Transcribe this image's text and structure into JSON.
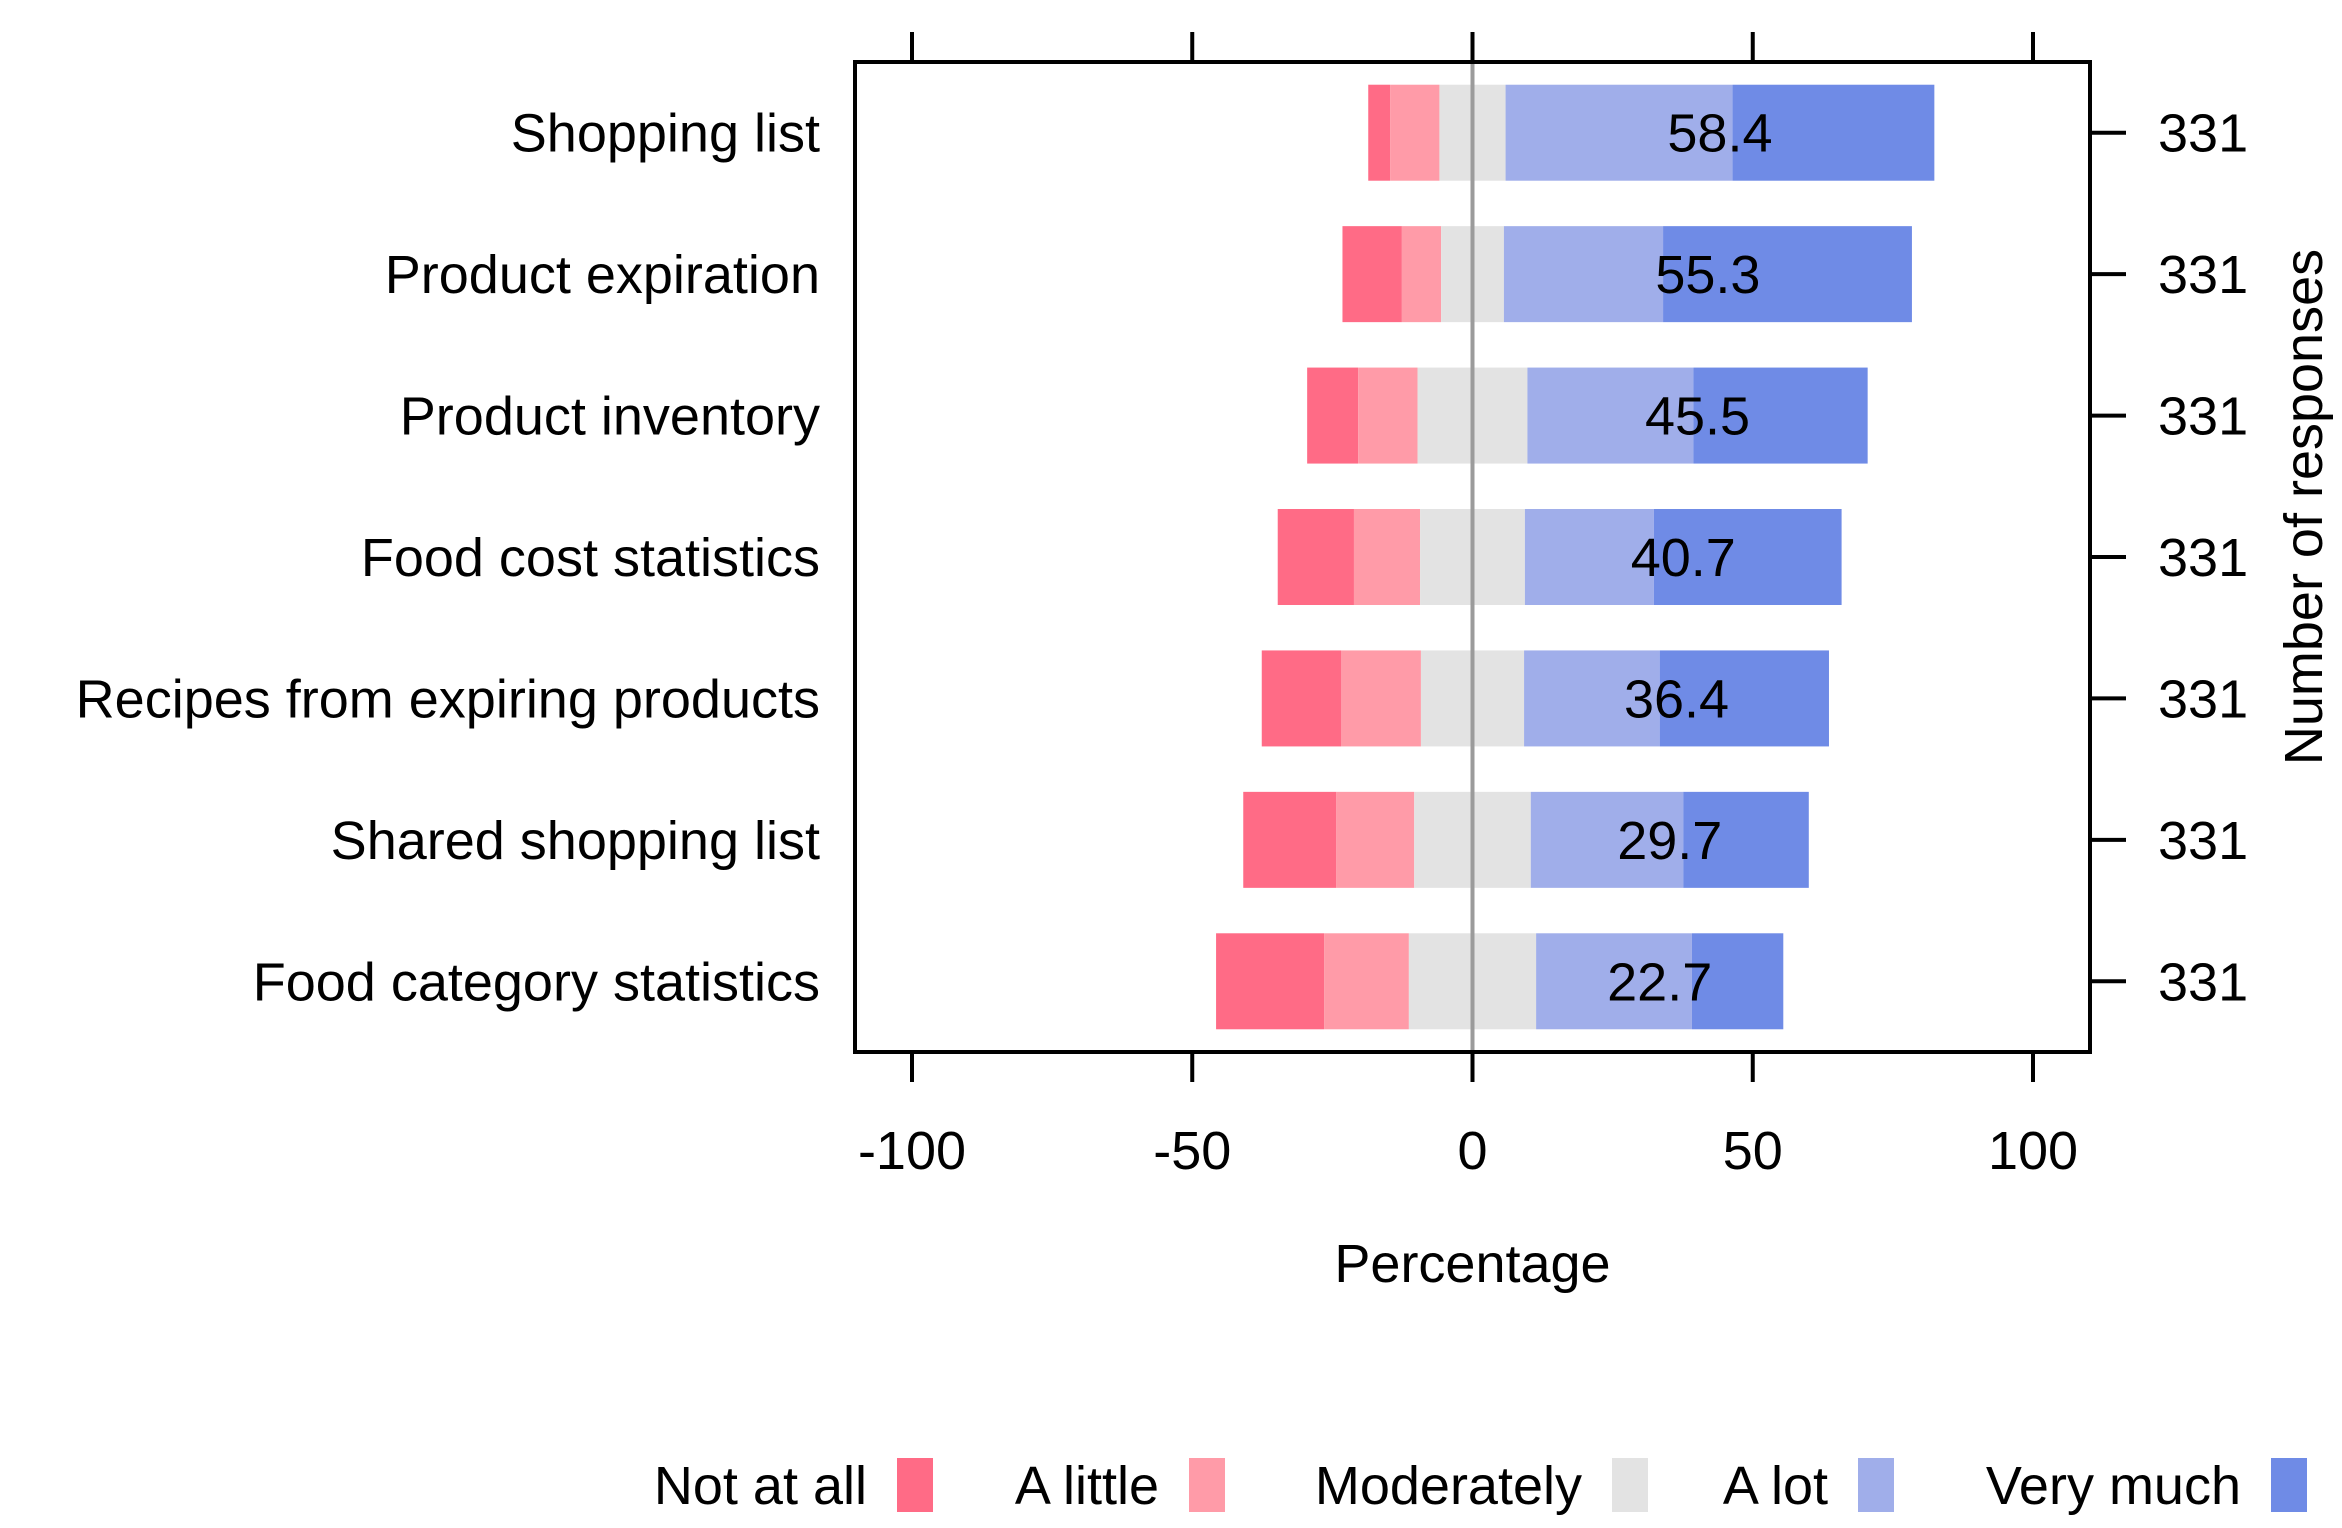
{
  "chart_data": {
    "type": "bar",
    "subtype": "diverging-stacked-likert",
    "xlabel": "Percentage",
    "right_axis_label": "Number of responses",
    "xlim": [
      -100,
      100
    ],
    "xticks": [
      "-100",
      "-50",
      "0",
      "50",
      "100"
    ],
    "xtick_values": [
      -100,
      -50,
      0,
      50,
      100
    ],
    "categories": [
      "Shopping list",
      "Product expiration",
      "Product inventory",
      "Food cost statistics",
      "Recipes from expiring products",
      "Shared shopping list",
      "Food category statistics"
    ],
    "responses": [
      "331",
      "331",
      "331",
      "331",
      "331",
      "331",
      "331"
    ],
    "data_labels": [
      "58.4",
      "55.3",
      "45.5",
      "40.7",
      "36.4",
      "29.7",
      "22.7"
    ],
    "series": [
      {
        "name": "Not at all",
        "color": "#FF6B86",
        "values": [
          3.9,
          10.6,
          9.1,
          13.6,
          14.2,
          16.6,
          19.3
        ]
      },
      {
        "name": "A little",
        "color": "#FF9BA8",
        "values": [
          8.8,
          7.0,
          10.6,
          11.8,
          14.2,
          13.9,
          15.1
        ]
      },
      {
        "name": "Moderately",
        "color": "#E3E3E3",
        "values": [
          11.8,
          11.2,
          19.6,
          18.7,
          18.4,
          20.8,
          22.7
        ]
      },
      {
        "name": "A lot",
        "color": "#A0AEEA",
        "values": [
          40.5,
          28.4,
          29.6,
          23.0,
          24.2,
          27.2,
          27.8
        ]
      },
      {
        "name": "Very much",
        "color": "#6F8BE6",
        "values": [
          36.0,
          44.4,
          31.1,
          33.5,
          30.2,
          22.4,
          16.3
        ]
      }
    ],
    "legend_position": "bottom"
  }
}
